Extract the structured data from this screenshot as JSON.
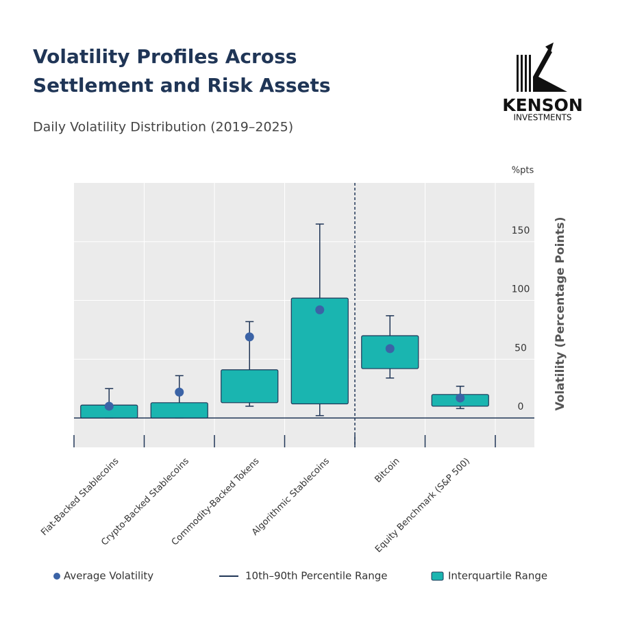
{
  "chart_data": {
    "type": "box",
    "title": "Volatility Profiles Across Settlement and Risk Assets",
    "subtitle": "Daily Volatility Distribution (2019–2025)",
    "brand": {
      "name": "KENSON",
      "tagline": "INVESTMENTS"
    },
    "y_unit": "%pts",
    "y_label": "Volatility (Percentage Points)",
    "categories": [
      "Fiat-Backed Stablecoins",
      "Crypto-Backed Stablecoins",
      "Commodity-Backed Tokens",
      "Algorithmic Stablecoins",
      "Bitcoin",
      "Equity Benchmark (S&P 500)"
    ],
    "low": [
      0,
      0,
      10,
      2,
      34,
      8
    ],
    "q1": [
      0,
      0,
      13,
      12,
      42,
      10
    ],
    "q3": [
      11,
      13,
      41,
      102,
      70,
      20
    ],
    "high": [
      25,
      36,
      82,
      165,
      87,
      27
    ],
    "mean": [
      10,
      22,
      69,
      92,
      59,
      17
    ],
    "legend": {
      "mean": "Average Volatility",
      "whisker": "10th–90th Percentile Range",
      "box": "Interquartile Range"
    },
    "box_color": "#1ab5b0",
    "line_color": "#1f3556",
    "mean_color": "#3b63a6",
    "ylim": [
      -25,
      200
    ],
    "yticks": [
      0,
      50,
      100,
      150
    ],
    "grid": true
  }
}
